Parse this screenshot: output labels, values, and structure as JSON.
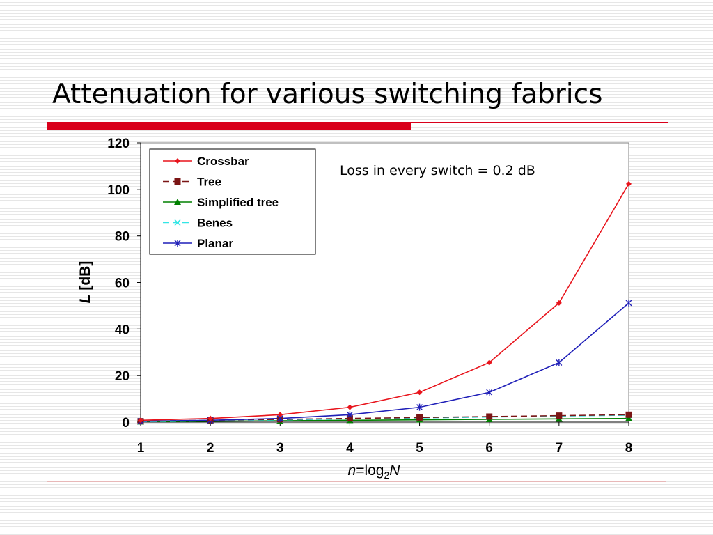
{
  "slide": {
    "title": "Attenuation for various switching fabrics"
  },
  "chart_data": {
    "type": "line",
    "x": [
      1,
      2,
      3,
      4,
      5,
      6,
      7,
      8
    ],
    "xlim": [
      1,
      8
    ],
    "ylim": [
      0,
      120
    ],
    "x_ticks": [
      "1",
      "2",
      "3",
      "4",
      "5",
      "6",
      "7",
      "8"
    ],
    "y_ticks": [
      "0",
      "20",
      "40",
      "60",
      "80",
      "100",
      "120"
    ],
    "y_tick_values": [
      0,
      20,
      40,
      60,
      80,
      100,
      120
    ],
    "xlabel": {
      "italic_part": "n",
      "mid": "=log",
      "sub": "2",
      "italic_end": "N"
    },
    "ylabel": {
      "italic_part": "L",
      "rest": " [dB]"
    },
    "annotation": "Loss in every switch = 0.2 dB",
    "grid": false,
    "legend_position": "top-left",
    "series": [
      {
        "name": "Crossbar",
        "color": "#e8141c",
        "dash": "solid",
        "marker": "diamond",
        "values": [
          0.8,
          1.6,
          3.2,
          6.4,
          12.8,
          25.6,
          51.2,
          102.4
        ]
      },
      {
        "name": "Tree",
        "color": "#7b1515",
        "dash": "dash",
        "marker": "square",
        "values": [
          0.4,
          0.8,
          1.2,
          1.6,
          2.0,
          2.4,
          2.8,
          3.2
        ]
      },
      {
        "name": "Simplified tree",
        "color": "#008000",
        "dash": "solid",
        "marker": "triangle",
        "values": [
          0.2,
          0.4,
          0.6,
          0.8,
          1.0,
          1.2,
          1.4,
          1.6
        ]
      },
      {
        "name": "Benes",
        "color": "#33e6e6",
        "dash": "dash",
        "marker": "x",
        "values": [
          0.2,
          0.6,
          1.0,
          1.4,
          1.8,
          2.2,
          2.6,
          3.0
        ]
      },
      {
        "name": "Planar",
        "color": "#1f1fb8",
        "dash": "solid",
        "marker": "star",
        "values": [
          0.4,
          0.8,
          1.6,
          3.2,
          6.4,
          12.8,
          25.6,
          51.2
        ]
      }
    ]
  }
}
